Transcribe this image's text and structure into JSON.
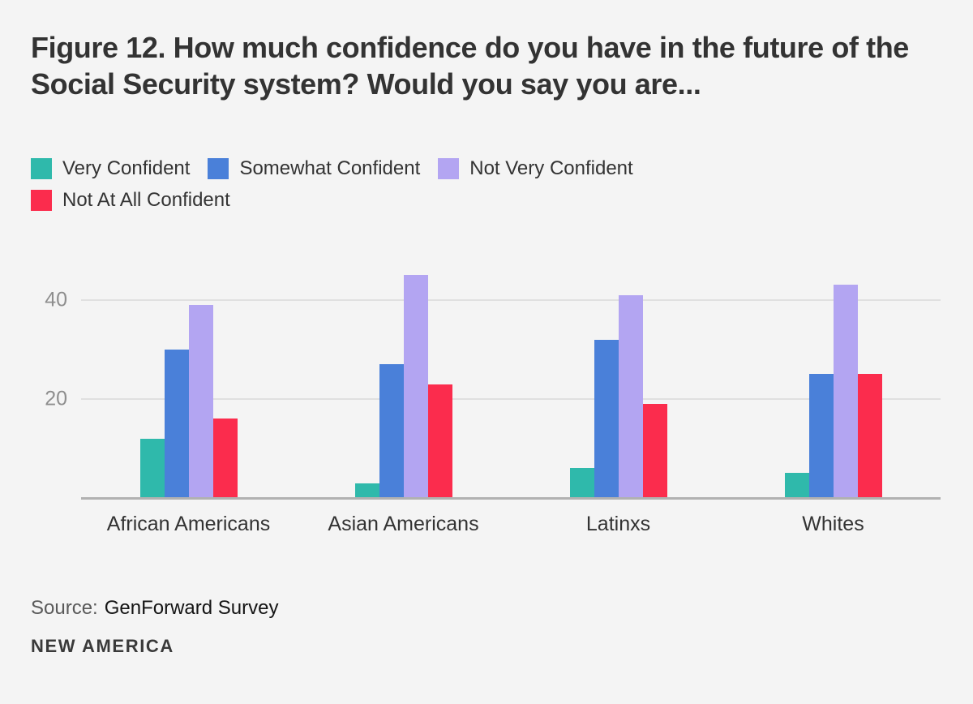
{
  "chart_data": {
    "type": "bar",
    "title": "Figure 12. How much confidence do you have in the future of the Social Security system? Would you say you are...",
    "categories": [
      "African Americans",
      "Asian Americans",
      "Latinxs",
      "Whites"
    ],
    "series": [
      {
        "name": "Very Confident",
        "color": "#2FB9AB",
        "values": [
          12,
          3,
          6,
          5
        ]
      },
      {
        "name": "Somewhat Confident",
        "color": "#4A80D9",
        "values": [
          30,
          27,
          32,
          25
        ]
      },
      {
        "name": "Not Very Confident",
        "color": "#B3A5F2",
        "values": [
          39,
          45,
          41,
          43
        ]
      },
      {
        "name": "Not At All Confident",
        "color": "#FB2C4D",
        "values": [
          16,
          23,
          19,
          25
        ]
      }
    ],
    "yticks": [
      20,
      40
    ],
    "ylim": [
      0,
      46.5
    ],
    "grid": true,
    "legend_position": "top",
    "xlabel": "",
    "ylabel": ""
  },
  "source": {
    "label": "Source:",
    "value": "GenForward Survey"
  },
  "brand": "NEW AMERICA",
  "colors": {
    "background": "#F4F4F4",
    "title_text": "#333333",
    "tick_text": "#8E8E8E",
    "gridline": "#E0E0E0",
    "axis_line": "#B1B1B1"
  }
}
